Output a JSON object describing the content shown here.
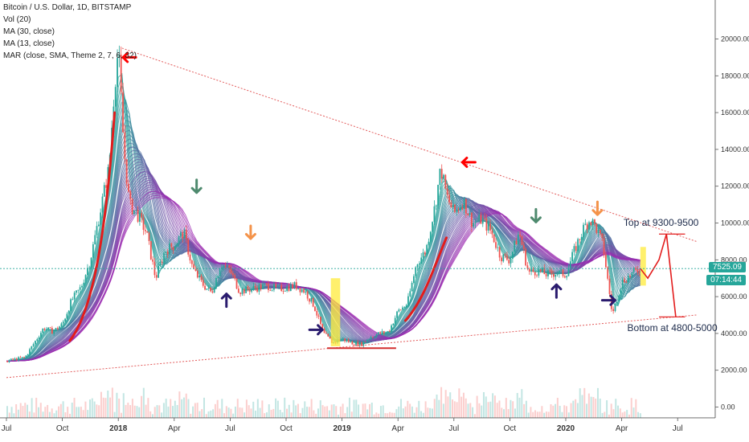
{
  "legend": {
    "title": "Bitcoin / U.S. Dollar, 1D, BITSTAMP",
    "vol": "Vol (20)",
    "ma30": "MA (30, close)",
    "ma13": "MA (13, close)",
    "mar": "MAR (close, SMA, Theme 2, 7, 6, 32)"
  },
  "price_tags": {
    "current_price": "7525.09",
    "countdown": "07:14:44"
  },
  "annotations": {
    "top": "Top at 9300-9500",
    "bottom": "Bottom at 4800-5000"
  },
  "colors": {
    "up": "#26a69a",
    "down": "#ef5350",
    "ribbon_purple": "#9c27b0",
    "ribbon_teal": "#26a69a",
    "arrow_red": "#ff0000",
    "arrow_navy": "#2a1b6e",
    "arrow_green": "#4e8a6e",
    "arrow_orange": "#f4934a",
    "highlight": "#ffeb3b",
    "price_tag": "#26a69a",
    "countdown_tag": "#26a69a"
  },
  "chart_data": {
    "type": "line",
    "title": "Bitcoin / U.S. Dollar, 1D, BITSTAMP",
    "x_ticks": [
      "Jul",
      "Oct",
      "2018",
      "Apr",
      "Jul",
      "Oct",
      "2019",
      "Apr",
      "Jul",
      "Oct",
      "2020",
      "Apr",
      "Jul"
    ],
    "y_ticks": [
      "0.00",
      "2000.00",
      "4000.00",
      "6000.00",
      "8000.00",
      "10000.00",
      "12000.00",
      "14000.00",
      "16000.00",
      "18000.00",
      "20000.00"
    ],
    "ylim": [
      -500,
      22000
    ],
    "x_months": [
      0,
      3,
      6,
      9,
      12,
      15,
      18,
      21,
      24,
      27,
      30,
      33,
      36
    ],
    "price_series": {
      "name": "Bitcoin / U.S. Dollar",
      "x_month": [
        0,
        1,
        2,
        2.5,
        3,
        3.5,
        4,
        4.5,
        5,
        5.5,
        5.8,
        6,
        6.3,
        6.6,
        7,
        7.5,
        8,
        8.5,
        9,
        9.5,
        10,
        10.5,
        11,
        11.5,
        12,
        12.5,
        13,
        13.5,
        14,
        14.5,
        15,
        15.5,
        16,
        16.5,
        17,
        17.5,
        18,
        18.5,
        19,
        19.5,
        20,
        20.5,
        21,
        21.5,
        22,
        22.5,
        23,
        23.3,
        23.6,
        24,
        24.5,
        25,
        25.5,
        26,
        26.5,
        27,
        27.5,
        28,
        28.5,
        29,
        29.5,
        30,
        30.5,
        31,
        31.3,
        31.6,
        32,
        32.5,
        33,
        33.5,
        34
      ],
      "values": [
        2500,
        2700,
        4300,
        4100,
        4500,
        5800,
        6500,
        8000,
        10500,
        13000,
        17500,
        19500,
        14000,
        11000,
        10500,
        9500,
        7000,
        8500,
        8800,
        9500,
        7500,
        6700,
        6200,
        7800,
        7400,
        6300,
        6400,
        6500,
        6600,
        6400,
        6500,
        6600,
        6300,
        5500,
        4000,
        3500,
        3700,
        3500,
        3400,
        3800,
        4000,
        4100,
        5200,
        5600,
        7800,
        8500,
        11000,
        13000,
        11500,
        10500,
        11200,
        10000,
        10200,
        9500,
        8200,
        8000,
        9500,
        7300,
        7400,
        7200,
        7300,
        7200,
        8600,
        9800,
        10200,
        9800,
        8800,
        5000,
        6800,
        7200,
        7525
      ]
    },
    "projection": {
      "x_month": [
        34,
        34.4,
        35.0,
        35.4,
        35.9
      ],
      "values": [
        7525,
        7000,
        8000,
        9400,
        4900
      ]
    },
    "trendlines": [
      {
        "name": "",
        "x_month": [
          6.2,
          37
        ],
        "values": [
          19500,
          9000
        ]
      },
      {
        "name": "",
        "x_month": [
          0,
          37
        ],
        "values": [
          1600,
          5000
        ]
      }
    ],
    "zones": [
      {
        "label": "Top at 9300-9500",
        "x_month": [
          35.0,
          36.4
        ],
        "values": [
          9300,
          9500
        ]
      },
      {
        "label": "Bottom at 4800-5000",
        "x_month": [
          35.0,
          36.4
        ],
        "values": [
          4800,
          5000
        ]
      }
    ],
    "support_line": {
      "x_month": [
        17.2,
        20.9
      ],
      "values": [
        3200,
        3200
      ]
    },
    "highlight_bars": [
      {
        "x_month": [
          17.4,
          17.9
        ],
        "values": [
          3300,
          7000
        ]
      },
      {
        "x_month": [
          34.0,
          34.3
        ],
        "values": [
          6600,
          8700
        ]
      }
    ],
    "arrows": [
      {
        "color": "red",
        "direction": "left",
        "x_month": 6.6,
        "value": 19000
      },
      {
        "color": "green",
        "direction": "down",
        "x_month": 10.2,
        "value": 12000
      },
      {
        "color": "orange",
        "direction": "down",
        "x_month": 13.1,
        "value": 9500
      },
      {
        "color": "navy",
        "direction": "up",
        "x_month": 11.8,
        "value": 5800
      },
      {
        "color": "navy",
        "direction": "right",
        "x_month": 16.6,
        "value": 4200
      },
      {
        "color": "red",
        "direction": "left",
        "x_month": 24.8,
        "value": 13300
      },
      {
        "color": "green",
        "direction": "down",
        "x_month": 28.4,
        "value": 10400
      },
      {
        "color": "orange",
        "direction": "down",
        "x_month": 31.7,
        "value": 10800
      },
      {
        "color": "navy",
        "direction": "up",
        "x_month": 29.5,
        "value": 6300
      },
      {
        "color": "navy",
        "direction": "right",
        "x_month": 32.3,
        "value": 5800
      }
    ],
    "grid": false,
    "legend_position": "top-left"
  }
}
